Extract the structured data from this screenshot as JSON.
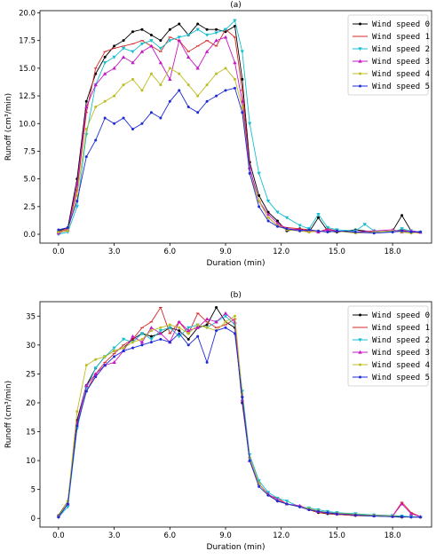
{
  "colors": [
    "#000000",
    "#d62728",
    "#17becf",
    "#c517c5",
    "#bcbd22",
    "#1f2bd6"
  ],
  "markers": [
    "circle",
    "line",
    "tri-down",
    "tri-up",
    "circle",
    "circle"
  ],
  "chart_data": [
    {
      "type": "line",
      "title": "(a)",
      "xlabel": "Duration (min)",
      "ylabel": "Runoff (cm³/min)",
      "xlim": [
        -1.0,
        20.1
      ],
      "ylim": [
        -0.8,
        20.2
      ],
      "xticks": [
        "0.0",
        "3.0",
        "6.0",
        "9.0",
        "12.0",
        "15.0",
        "18.0"
      ],
      "xtick_values": [
        0,
        3,
        6,
        9,
        12,
        15,
        18
      ],
      "yticks": [
        "0.0",
        "2.5",
        "5.0",
        "7.5",
        "10.0",
        "12.5",
        "15.0",
        "17.5",
        "20.0"
      ],
      "ytick_values": [
        0,
        2.5,
        5,
        7.5,
        10,
        12.5,
        15,
        17.5,
        20
      ],
      "legend_position": "top-right",
      "series": [
        {
          "name": "Wind speed 0",
          "x": [
            0,
            0.5,
            1.0,
            1.5,
            2.0,
            2.5,
            3.0,
            3.5,
            4.0,
            4.5,
            5.0,
            5.5,
            6.0,
            6.5,
            7.0,
            7.5,
            8.0,
            8.5,
            9.0,
            9.5,
            9.9,
            10.3,
            10.8,
            11.3,
            11.8,
            12.3,
            13.0,
            13.5,
            14.0,
            14.5,
            15.0,
            16.0,
            17.0,
            18.0,
            18.5,
            19.0,
            19.5
          ],
          "y": [
            0.3,
            0.6,
            5.0,
            12.0,
            14.5,
            16.0,
            17.0,
            17.5,
            18.3,
            18.5,
            18.0,
            17.5,
            18.5,
            19.0,
            18.0,
            19.0,
            18.5,
            18.5,
            18.3,
            18.8,
            14.0,
            6.5,
            3.5,
            2.0,
            1.2,
            0.3,
            0.5,
            0.2,
            1.5,
            0.3,
            0.2,
            0.4,
            0.2,
            0.3,
            1.7,
            0.3,
            0.2
          ]
        },
        {
          "name": "Wind speed 1",
          "x": [
            0,
            0.5,
            1.0,
            1.5,
            2.0,
            2.5,
            3.0,
            3.5,
            4.0,
            4.5,
            5.0,
            5.5,
            6.0,
            6.5,
            7.0,
            7.5,
            8.0,
            8.5,
            9.0,
            9.5,
            9.9,
            10.3,
            10.8,
            11.3,
            11.8,
            12.3,
            13.0,
            13.5,
            14.0,
            14.5,
            15.0,
            16.0,
            17.0,
            18.0,
            18.5,
            19.0,
            19.5
          ],
          "y": [
            0.2,
            0.5,
            4.0,
            11.0,
            15.0,
            16.5,
            16.8,
            17.0,
            17.2,
            17.5,
            17.0,
            16.5,
            17.8,
            17.5,
            16.5,
            17.0,
            17.5,
            17.0,
            18.5,
            17.8,
            13.0,
            6.0,
            3.0,
            1.5,
            0.8,
            0.6,
            0.5,
            0.4,
            0.2,
            0.5,
            0.3,
            0.2,
            0.3,
            0.2,
            0.4,
            0.2,
            0.1
          ]
        },
        {
          "name": "Wind speed 2",
          "x": [
            0,
            0.5,
            1.0,
            1.5,
            2.0,
            2.5,
            3.0,
            3.5,
            4.0,
            4.5,
            5.0,
            5.5,
            6.0,
            6.5,
            7.0,
            7.5,
            8.0,
            8.5,
            9.0,
            9.5,
            9.9,
            10.3,
            10.8,
            11.3,
            11.8,
            12.3,
            13.0,
            13.5,
            14.0,
            14.5,
            15.0,
            16.0,
            16.5,
            17.0,
            18.0,
            18.5,
            19.0,
            19.5
          ],
          "y": [
            0.0,
            0.2,
            2.5,
            9.0,
            13.5,
            15.5,
            16.0,
            16.8,
            16.5,
            17.2,
            17.5,
            16.8,
            17.5,
            17.8,
            18.0,
            18.5,
            18.0,
            18.2,
            18.5,
            19.3,
            16.5,
            10.0,
            5.5,
            3.0,
            2.0,
            1.5,
            0.8,
            0.5,
            1.8,
            0.6,
            0.4,
            0.3,
            0.9,
            0.3,
            0.2,
            0.5,
            0.3,
            0.2
          ]
        },
        {
          "name": "Wind speed 3",
          "x": [
            0,
            0.5,
            1.0,
            1.5,
            2.0,
            2.5,
            3.0,
            3.5,
            4.0,
            4.5,
            5.0,
            5.5,
            6.0,
            6.5,
            7.0,
            7.5,
            8.0,
            8.5,
            9.0,
            9.5,
            9.9,
            10.3,
            10.8,
            11.3,
            11.8,
            12.3,
            13.0,
            13.5,
            14.0,
            14.5,
            15.0,
            16.0,
            17.0,
            18.0,
            18.5,
            19.0,
            19.5
          ],
          "y": [
            0.1,
            0.4,
            4.5,
            11.5,
            13.5,
            14.5,
            15.0,
            16.0,
            15.5,
            16.5,
            17.0,
            15.5,
            14.0,
            17.5,
            16.0,
            15.0,
            16.5,
            17.5,
            17.8,
            15.5,
            12.0,
            6.0,
            3.0,
            1.8,
            1.0,
            0.5,
            0.4,
            0.3,
            0.2,
            0.4,
            0.3,
            0.2,
            0.3,
            0.4,
            0.2,
            0.3,
            0.2
          ]
        },
        {
          "name": "Wind speed 4",
          "x": [
            0,
            0.5,
            1.0,
            1.5,
            2.0,
            2.5,
            3.0,
            3.5,
            4.0,
            4.5,
            5.0,
            5.5,
            6.0,
            6.5,
            7.0,
            7.5,
            8.0,
            8.5,
            9.0,
            9.5,
            9.9,
            10.3,
            10.8,
            11.3,
            11.8,
            12.3,
            13.0,
            13.5,
            14.0,
            14.5,
            15.0,
            16.0,
            17.0,
            18.0,
            18.5,
            19.0,
            19.5
          ],
          "y": [
            0.2,
            0.3,
            3.5,
            9.5,
            11.5,
            12.0,
            12.5,
            13.5,
            14.0,
            13.0,
            14.5,
            13.5,
            15.0,
            14.5,
            13.5,
            12.5,
            13.5,
            14.5,
            15.0,
            14.0,
            11.5,
            5.5,
            3.0,
            1.5,
            0.8,
            0.4,
            0.3,
            0.2,
            0.3,
            0.2,
            0.3,
            0.1,
            0.2,
            0.3,
            0.2,
            0.1,
            0.2
          ]
        },
        {
          "name": "Wind speed 5",
          "x": [
            0,
            0.5,
            1.0,
            1.5,
            2.0,
            2.5,
            3.0,
            3.5,
            4.0,
            4.5,
            5.0,
            5.5,
            6.0,
            6.5,
            7.0,
            7.5,
            8.0,
            8.5,
            9.0,
            9.5,
            9.9,
            10.3,
            10.8,
            11.3,
            11.8,
            12.3,
            13.0,
            13.5,
            14.0,
            14.5,
            15.0,
            16.0,
            17.0,
            18.0,
            18.5,
            19.0,
            19.5
          ],
          "y": [
            0.4,
            0.6,
            3.0,
            7.0,
            8.5,
            10.5,
            10.0,
            10.5,
            9.5,
            10.0,
            11.0,
            10.5,
            12.0,
            13.0,
            11.5,
            11.0,
            12.0,
            12.5,
            13.0,
            13.2,
            11.0,
            5.5,
            2.5,
            1.2,
            0.7,
            0.5,
            0.3,
            0.4,
            0.3,
            0.2,
            0.3,
            0.2,
            0.1,
            0.2,
            0.3,
            0.2,
            0.2
          ]
        }
      ]
    },
    {
      "type": "line",
      "title": "(b)",
      "xlabel": "Duration (min)",
      "ylabel": "Runoff (cm³/min)",
      "xlim": [
        -1.0,
        20.1
      ],
      "ylim": [
        -1.5,
        37.5
      ],
      "xticks": [
        "0.0",
        "3.0",
        "6.0",
        "9.0",
        "12.0",
        "15.0",
        "18.0"
      ],
      "xtick_values": [
        0,
        3,
        6,
        9,
        12,
        15,
        18
      ],
      "yticks": [
        "0",
        "5",
        "10",
        "15",
        "20",
        "25",
        "30",
        "35"
      ],
      "ytick_values": [
        0,
        5,
        10,
        15,
        20,
        25,
        30,
        35
      ],
      "legend_position": "top-right",
      "series": [
        {
          "name": "Wind speed 0",
          "x": [
            0,
            0.5,
            1.0,
            1.5,
            2.0,
            2.5,
            3.0,
            3.5,
            4.0,
            4.5,
            5.0,
            5.5,
            6.0,
            6.5,
            7.0,
            7.5,
            8.0,
            8.5,
            9.0,
            9.5,
            9.9,
            10.3,
            10.8,
            11.3,
            11.8,
            12.3,
            13.0,
            13.5,
            14.0,
            14.5,
            15.0,
            16.0,
            17.0,
            18.0,
            18.5,
            19.0,
            19.5
          ],
          "y": [
            0.5,
            3.0,
            17.0,
            23.0,
            26.0,
            28.0,
            29.0,
            29.5,
            31.0,
            32.0,
            31.5,
            32.0,
            33.0,
            32.5,
            31.0,
            33.0,
            33.5,
            36.5,
            34.0,
            33.0,
            20.0,
            10.0,
            6.0,
            4.0,
            3.0,
            2.5,
            2.0,
            1.5,
            1.0,
            0.8,
            0.7,
            0.5,
            0.4,
            0.3,
            0.2,
            0.3,
            0.2
          ]
        },
        {
          "name": "Wind speed 1",
          "x": [
            0,
            0.5,
            1.0,
            1.5,
            2.0,
            2.5,
            3.0,
            3.5,
            4.0,
            4.5,
            5.0,
            5.5,
            6.0,
            6.5,
            7.0,
            7.5,
            8.0,
            8.5,
            9.0,
            9.5,
            9.9,
            10.3,
            10.8,
            11.3,
            11.8,
            12.3,
            13.0,
            13.5,
            14.0,
            14.5,
            15.0,
            16.0,
            17.0,
            18.0,
            18.5,
            19.0,
            19.5
          ],
          "y": [
            0.3,
            2.5,
            16.0,
            22.0,
            25.0,
            27.0,
            28.5,
            30.0,
            31.0,
            33.0,
            34.0,
            36.5,
            32.0,
            34.0,
            32.0,
            35.5,
            34.0,
            33.0,
            33.5,
            34.5,
            21.0,
            10.5,
            6.0,
            4.0,
            3.5,
            2.5,
            2.0,
            1.5,
            1.0,
            0.9,
            0.7,
            0.5,
            0.6,
            0.4,
            2.8,
            1.0,
            0.3
          ]
        },
        {
          "name": "Wind speed 2",
          "x": [
            0,
            0.5,
            1.0,
            1.5,
            2.0,
            2.5,
            3.0,
            3.5,
            4.0,
            4.5,
            5.0,
            5.5,
            6.0,
            6.5,
            7.0,
            7.5,
            8.0,
            8.5,
            9.0,
            9.5,
            9.9,
            10.3,
            10.8,
            11.3,
            11.8,
            12.3,
            13.0,
            13.5,
            14.0,
            14.5,
            15.0,
            16.0,
            17.0,
            18.0,
            18.5,
            19.0,
            19.5
          ],
          "y": [
            0.2,
            2.0,
            15.5,
            22.5,
            26.0,
            28.0,
            29.5,
            31.0,
            30.5,
            32.0,
            31.0,
            32.5,
            33.0,
            31.5,
            33.0,
            33.5,
            33.0,
            34.0,
            35.0,
            33.5,
            22.0,
            11.0,
            6.5,
            4.5,
            3.5,
            3.0,
            2.0,
            1.8,
            1.5,
            1.2,
            1.0,
            0.8,
            0.6,
            0.5,
            0.4,
            0.3,
            0.2
          ]
        },
        {
          "name": "Wind speed 3",
          "x": [
            0,
            0.5,
            1.0,
            1.5,
            2.0,
            2.5,
            3.0,
            3.5,
            4.0,
            4.5,
            5.0,
            5.5,
            6.0,
            6.5,
            7.0,
            7.5,
            8.0,
            8.5,
            9.0,
            9.5,
            9.9,
            10.3,
            10.8,
            11.3,
            11.8,
            12.3,
            13.0,
            13.5,
            14.0,
            14.5,
            15.0,
            16.0,
            17.0,
            18.0,
            18.5,
            19.0,
            19.5
          ],
          "y": [
            0.4,
            2.5,
            16.5,
            23.0,
            25.0,
            26.5,
            27.0,
            29.0,
            31.5,
            30.5,
            33.0,
            32.0,
            30.5,
            34.0,
            32.5,
            33.0,
            34.5,
            34.0,
            35.5,
            34.0,
            20.5,
            10.0,
            6.0,
            4.2,
            3.2,
            2.5,
            2.2,
            1.6,
            1.2,
            1.0,
            0.8,
            0.6,
            0.5,
            0.4,
            2.5,
            0.8,
            0.3
          ]
        },
        {
          "name": "Wind speed 4",
          "x": [
            0,
            0.5,
            1.0,
            1.5,
            2.0,
            2.5,
            3.0,
            3.5,
            4.0,
            4.5,
            5.0,
            5.5,
            6.0,
            6.5,
            7.0,
            7.5,
            8.0,
            8.5,
            9.0,
            9.5,
            9.9,
            10.3,
            10.8,
            11.3,
            11.8,
            12.3,
            13.0,
            13.5,
            14.0,
            14.5,
            15.0,
            16.0,
            17.0,
            18.0,
            18.5,
            19.0,
            19.5
          ],
          "y": [
            0.3,
            3.0,
            18.5,
            26.5,
            27.5,
            28.0,
            29.0,
            29.5,
            30.5,
            31.0,
            32.5,
            33.0,
            33.5,
            33.0,
            32.0,
            33.5,
            33.0,
            32.5,
            34.0,
            35.0,
            21.5,
            10.5,
            6.0,
            4.0,
            3.0,
            2.5,
            2.0,
            1.7,
            1.3,
            1.0,
            0.9,
            0.7,
            0.5,
            0.4,
            0.3,
            0.2,
            0.2
          ]
        },
        {
          "name": "Wind speed 5",
          "x": [
            0,
            0.5,
            1.0,
            1.5,
            2.0,
            2.5,
            3.0,
            3.5,
            4.0,
            4.5,
            5.0,
            5.5,
            6.0,
            6.5,
            7.0,
            7.5,
            8.0,
            8.5,
            9.0,
            9.5,
            9.9,
            10.3,
            10.8,
            11.3,
            11.8,
            12.3,
            13.0,
            13.5,
            14.0,
            14.5,
            15.0,
            16.0,
            17.0,
            18.0,
            18.5,
            19.0,
            19.5
          ],
          "y": [
            0.2,
            2.5,
            16.0,
            22.0,
            24.5,
            26.5,
            28.0,
            29.0,
            29.5,
            30.0,
            30.5,
            31.0,
            30.5,
            32.0,
            30.0,
            31.5,
            27.0,
            32.5,
            33.0,
            32.0,
            21.0,
            10.0,
            5.5,
            4.0,
            3.0,
            2.5,
            2.0,
            1.5,
            1.2,
            1.0,
            0.8,
            0.6,
            0.4,
            0.3,
            0.3,
            0.2,
            0.2
          ]
        }
      ]
    }
  ]
}
